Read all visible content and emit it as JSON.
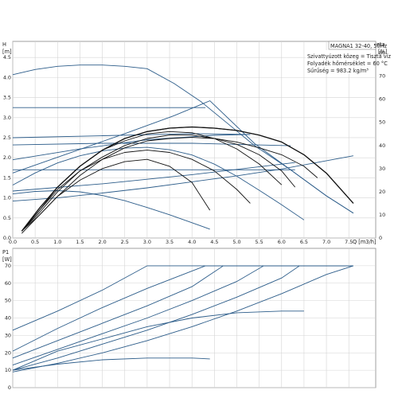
{
  "chart_data": [
    {
      "type": "line",
      "title": "MAGNA1 32-40, 50Hz",
      "info": [
        "Szivattyúzott közeg = Tiszta víz",
        "Folyadék hőmérséklet = 60 °C",
        "Sűrűség = 983.2 kg/m³"
      ],
      "ylabel": "H",
      "yunit": "[m]",
      "y2label": "eta",
      "y2unit": "[%]",
      "xlabel": "Q [m3/h]",
      "xlim": [
        0,
        8.1
      ],
      "ylim": [
        0,
        4.9
      ],
      "y2lim": [
        0,
        85
      ],
      "xticks": [
        "0.0",
        "0.5",
        "1.0",
        "1.5",
        "2.0",
        "2.5",
        "3.0",
        "3.5",
        "4.0",
        "4.5",
        "5.0",
        "5.5",
        "6.0",
        "6.5",
        "7.0",
        "7.5"
      ],
      "xtick_values": [
        0,
        0.5,
        1,
        1.5,
        2,
        2.5,
        3,
        3.5,
        4,
        4.5,
        5,
        5.5,
        6,
        6.5,
        7,
        7.5
      ],
      "yticks": [
        "0.0",
        "0.5",
        "1.0",
        "1.5",
        "2.0",
        "2.5",
        "3.0",
        "3.5",
        "4.0",
        "4.5"
      ],
      "ytick_values": [
        0,
        0.5,
        1,
        1.5,
        2,
        2.5,
        3,
        3.5,
        4,
        4.5
      ],
      "y2ticks": [
        "0",
        "10",
        "20",
        "30",
        "40",
        "50",
        "60",
        "70",
        "80"
      ],
      "y2tick_values": [
        0,
        10,
        20,
        30,
        40,
        50,
        60,
        70,
        80
      ],
      "grid": true,
      "colors": {
        "pump": "#2d5d8a",
        "eta": "#111111"
      },
      "pump_curves": [
        {
          "x": [
            0,
            0.5,
            1,
            1.5,
            2,
            2.5,
            3,
            3.6,
            4.2,
            4.8,
            5.4,
            6.2,
            7.0,
            7.6
          ],
          "y": [
            4.07,
            4.2,
            4.28,
            4.31,
            4.31,
            4.28,
            4.22,
            3.85,
            3.4,
            2.85,
            2.3,
            1.7,
            1.05,
            0.62
          ]
        },
        {
          "x": [
            0,
            4.3
          ],
          "y": [
            3.25,
            3.25
          ]
        },
        {
          "x": [
            0,
            2.5,
            3.6,
            4.4,
            5.4,
            6.2,
            7.0,
            7.6
          ],
          "y": [
            1.62,
            2.6,
            3.05,
            3.42,
            2.35,
            1.7,
            1.05,
            0.62
          ]
        },
        {
          "x": [
            0,
            2,
            4,
            5.3
          ],
          "y": [
            2.5,
            2.55,
            2.6,
            2.58
          ]
        },
        {
          "x": [
            0,
            1.5,
            3,
            4.5,
            5.3
          ],
          "y": [
            1.95,
            2.22,
            2.45,
            2.56,
            2.58
          ]
        },
        {
          "x": [
            0,
            2,
            4,
            6.2
          ],
          "y": [
            2.32,
            2.36,
            2.36,
            2.3
          ]
        },
        {
          "x": [
            0,
            0.5,
            1,
            1.5,
            2,
            2.5,
            3,
            3.5,
            4,
            4.5,
            5,
            5.5,
            6,
            6.5
          ],
          "y": [
            1.32,
            1.62,
            1.87,
            2.05,
            2.17,
            2.24,
            2.26,
            2.2,
            2.07,
            1.84,
            1.54,
            1.19,
            0.83,
            0.45
          ]
        },
        {
          "x": [
            0,
            3,
            6.3
          ],
          "y": [
            1.7,
            1.7,
            1.7
          ]
        },
        {
          "x": [
            0,
            2,
            4,
            6.3
          ],
          "y": [
            1.17,
            1.35,
            1.58,
            1.88
          ]
        },
        {
          "x": [
            0,
            1,
            2,
            3,
            4,
            5,
            6,
            7.6
          ],
          "y": [
            0.92,
            1.0,
            1.12,
            1.25,
            1.4,
            1.55,
            1.72,
            2.05
          ]
        },
        {
          "x": [
            0,
            0.5,
            1,
            1.5,
            2,
            2.5,
            3,
            3.5,
            4,
            4.4
          ],
          "y": [
            1.1,
            1.16,
            1.18,
            1.15,
            1.06,
            0.93,
            0.76,
            0.58,
            0.38,
            0.22
          ]
        }
      ],
      "eta_curves": [
        {
          "x": [
            0.2,
            0.6,
            1,
            1.5,
            2,
            2.5,
            3,
            3.5,
            4,
            4.5,
            5,
            5.5,
            6,
            6.5,
            7,
            7.6
          ],
          "y": [
            3,
            13,
            22,
            31,
            38,
            43,
            46,
            47.5,
            48,
            47.5,
            46.5,
            44.5,
            41.5,
            36,
            28,
            15
          ]
        },
        {
          "x": [
            0.2,
            0.6,
            1,
            1.5,
            2,
            2.5,
            3,
            3.5,
            4,
            4.5,
            5,
            5.5,
            6,
            6.5,
            6.8
          ],
          "y": [
            2,
            10,
            18,
            27,
            34,
            39,
            42,
            43,
            43.5,
            43,
            41.5,
            39,
            36,
            31,
            26
          ]
        },
        {
          "x": [
            0.2,
            0.6,
            1,
            1.5,
            2,
            2.5,
            3,
            3.5,
            4,
            4.5,
            5,
            5.5,
            6,
            6.3
          ],
          "y": [
            3,
            11,
            20,
            29,
            35,
            40,
            43,
            44.5,
            44.5,
            43,
            40.5,
            36,
            29,
            22
          ]
        },
        {
          "x": [
            0.2,
            0.6,
            1,
            1.5,
            2,
            2.5,
            3,
            3.5,
            4,
            4.5,
            5,
            5.5,
            6.0
          ],
          "y": [
            3,
            12,
            22,
            31,
            38,
            42,
            45,
            46,
            45.5,
            43,
            38.5,
            32,
            23
          ]
        },
        {
          "x": [
            0.2,
            0.6,
            1,
            1.5,
            2,
            2.5,
            3,
            3.5,
            4,
            4.5,
            5,
            5.3
          ],
          "y": [
            3,
            12,
            21,
            29,
            34,
            37,
            38,
            37,
            34,
            29,
            21,
            15
          ]
        },
        {
          "x": [
            0.2,
            0.6,
            1,
            1.5,
            2,
            2.5,
            3,
            3.5,
            4,
            4.4
          ],
          "y": [
            3,
            10,
            18,
            25,
            30,
            33,
            34,
            31,
            24,
            12
          ]
        },
        {
          "x": [
            0.6,
            1,
            1.5,
            2,
            2.5,
            3,
            3.5,
            4,
            4.5,
            5,
            5.5,
            6,
            6.5,
            7,
            7.6
          ],
          "y": [
            13,
            22,
            31,
            38,
            43,
            46,
            47.5,
            48,
            47.5,
            46.5,
            44.5,
            41.5,
            36,
            28,
            15
          ]
        }
      ]
    },
    {
      "type": "line",
      "ylabel": "P1",
      "yunit": "[W]",
      "xlim": [
        0,
        8.1
      ],
      "ylim": [
        0,
        80
      ],
      "xtick_values": [
        0,
        0.5,
        1,
        1.5,
        2,
        2.5,
        3,
        3.5,
        4,
        4.5,
        5,
        5.5,
        6,
        6.5,
        7,
        7.5
      ],
      "yticks": [
        "0",
        "10",
        "20",
        "30",
        "40",
        "50",
        "60",
        "70"
      ],
      "ytick_values": [
        0,
        10,
        20,
        30,
        40,
        50,
        60,
        70
      ],
      "grid": true,
      "curves": [
        {
          "x": [
            0,
            1,
            2,
            3,
            3.4,
            4,
            5,
            6,
            7,
            7.6
          ],
          "y": [
            33,
            44,
            56,
            70,
            70,
            70,
            70,
            70,
            70,
            70
          ]
        },
        {
          "x": [
            0,
            1,
            2,
            3,
            3.6,
            4.3,
            5,
            6,
            7,
            7.6
          ],
          "y": [
            21,
            34,
            46,
            57,
            63,
            70,
            70,
            70,
            70,
            70
          ]
        },
        {
          "x": [
            0,
            1,
            2,
            3,
            4,
            4.7,
            5,
            6,
            7,
            7.6
          ],
          "y": [
            17,
            27,
            37,
            47,
            58,
            70,
            70,
            70,
            70,
            70
          ]
        },
        {
          "x": [
            0,
            1,
            2,
            3,
            4,
            5,
            5.6,
            6,
            7,
            7.6
          ],
          "y": [
            13,
            22,
            31,
            40,
            50,
            61,
            70,
            70,
            70,
            70
          ]
        },
        {
          "x": [
            0,
            1,
            2,
            3,
            4,
            5,
            6,
            6.4,
            7,
            7.6
          ],
          "y": [
            10,
            17,
            25,
            33,
            42,
            52,
            63,
            70,
            70,
            70
          ]
        },
        {
          "x": [
            0,
            1,
            2,
            3,
            4,
            5,
            6,
            6.5
          ],
          "y": [
            10,
            21,
            28,
            35,
            40,
            43,
            44,
            44
          ]
        },
        {
          "x": [
            0,
            1,
            2,
            3,
            4,
            5,
            6,
            7,
            7.6
          ],
          "y": [
            9,
            14,
            20,
            27,
            35,
            44,
            54,
            65,
            70
          ]
        },
        {
          "x": [
            0,
            1,
            2,
            3,
            4,
            4.4
          ],
          "y": [
            10,
            13.5,
            16,
            17,
            17,
            16.5
          ]
        }
      ]
    }
  ]
}
